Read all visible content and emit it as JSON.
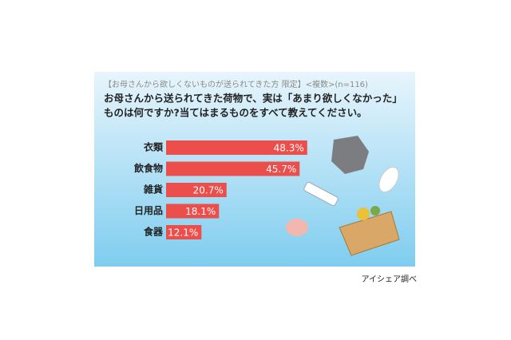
{
  "chart_data": {
    "type": "bar",
    "orientation": "horizontal",
    "subtitle": "【お母さんから欲しくないものが送られてきた方 限定】<複数>(n=116)",
    "title": [
      "お母さんから送られてきた荷物で、実は「あまり欲しくなかった」",
      "ものは何ですか?当てはまるものをすべて教えてください。"
    ],
    "categories": [
      "衣類",
      "飲食物",
      "雑貨",
      "日用品",
      "食器"
    ],
    "values": [
      48.3,
      45.7,
      20.7,
      18.1,
      12.1
    ],
    "value_labels": [
      "48.3%",
      "45.7%",
      "20.7%",
      "18.1%",
      "12.1%"
    ],
    "color": "#ec4e4b",
    "source": "アイシェア調べ"
  }
}
